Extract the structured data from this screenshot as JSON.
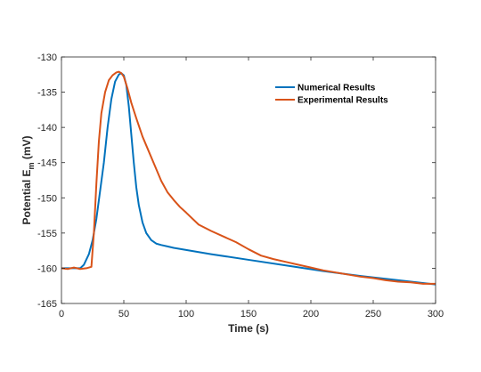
{
  "chart_data": {
    "type": "line",
    "title": "",
    "xlabel": "Time (s)",
    "ylabel_main": "Potential E",
    "ylabel_sub": "m",
    "ylabel_unit": " (mV)",
    "xlim": [
      0,
      300
    ],
    "ylim": [
      -165,
      -130
    ],
    "x_ticks": [
      0,
      50,
      100,
      150,
      200,
      250,
      300
    ],
    "y_ticks": [
      -130,
      -135,
      -140,
      -145,
      -150,
      -155,
      -160,
      -165
    ],
    "grid": false,
    "legend_position": "top-right",
    "series": [
      {
        "name": "Numerical Results",
        "color": "#0072BD",
        "x": [
          0,
          5,
          10,
          15,
          18,
          22,
          25,
          28,
          31,
          34,
          37,
          40,
          43,
          46,
          48,
          50,
          52,
          54,
          56,
          58,
          60,
          62,
          65,
          68,
          72,
          76,
          80,
          85,
          90,
          100,
          120,
          150,
          180,
          210,
          240,
          270,
          300
        ],
        "y": [
          -160,
          -160,
          -160,
          -160,
          -159.5,
          -158,
          -156,
          -153,
          -149,
          -145,
          -140,
          -136,
          -133.5,
          -132.5,
          -132.3,
          -132.6,
          -134,
          -137,
          -141,
          -145,
          -148.5,
          -151,
          -153.5,
          -155,
          -156,
          -156.5,
          -156.7,
          -156.9,
          -157.1,
          -157.4,
          -158,
          -158.8,
          -159.6,
          -160.4,
          -161.1,
          -161.7,
          -162.3
        ]
      },
      {
        "name": "Experimental Results",
        "color": "#D95319",
        "x": [
          0,
          5,
          10,
          15,
          20,
          24,
          26,
          28,
          30,
          32,
          35,
          38,
          41,
          44,
          46,
          48,
          50,
          53,
          56,
          60,
          65,
          70,
          75,
          80,
          85,
          90,
          95,
          100,
          110,
          120,
          130,
          140,
          150,
          160,
          170,
          180,
          190,
          200,
          210,
          220,
          230,
          240,
          250,
          260,
          270,
          280,
          290,
          300
        ],
        "y": [
          -160,
          -160.1,
          -159.9,
          -160.1,
          -160,
          -159.8,
          -155,
          -148,
          -142,
          -138,
          -135,
          -133.3,
          -132.6,
          -132.2,
          -132.1,
          -132.3,
          -132.8,
          -134.5,
          -136.5,
          -138.7,
          -141.3,
          -143.4,
          -145.5,
          -147.6,
          -149.2,
          -150.3,
          -151.3,
          -152.1,
          -153.8,
          -154.7,
          -155.5,
          -156.3,
          -157.3,
          -158.2,
          -158.7,
          -159.1,
          -159.5,
          -159.9,
          -160.3,
          -160.6,
          -160.9,
          -161.2,
          -161.4,
          -161.7,
          -161.9,
          -162,
          -162.2,
          -162.2
        ]
      }
    ]
  }
}
